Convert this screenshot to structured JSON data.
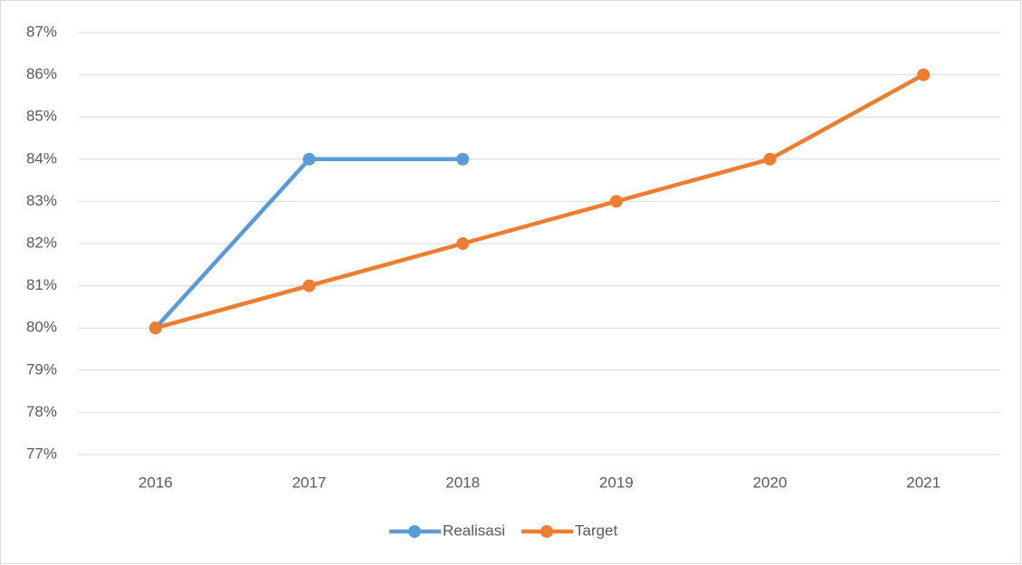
{
  "chart_data": {
    "type": "line",
    "categories": [
      "2016",
      "2017",
      "2018",
      "2019",
      "2020",
      "2021"
    ],
    "series": [
      {
        "name": "Realisasi",
        "color": "#5b9bd5",
        "values": [
          80,
          84,
          84,
          null,
          null,
          null
        ]
      },
      {
        "name": "Target",
        "color": "#ed7d31",
        "values": [
          80,
          81,
          82,
          83,
          84,
          86
        ]
      }
    ],
    "ylim": [
      77,
      87
    ],
    "yticks": [
      {
        "value": 77,
        "label": "77%"
      },
      {
        "value": 78,
        "label": "78%"
      },
      {
        "value": 79,
        "label": "79%"
      },
      {
        "value": 80,
        "label": "80%"
      },
      {
        "value": 81,
        "label": "81%"
      },
      {
        "value": 82,
        "label": "82%"
      },
      {
        "value": 83,
        "label": "83%"
      },
      {
        "value": 84,
        "label": "84%"
      },
      {
        "value": 85,
        "label": "85%"
      },
      {
        "value": 86,
        "label": "86%"
      },
      {
        "value": 87,
        "label": "87%"
      }
    ],
    "grid": true,
    "legend": "bottom"
  }
}
